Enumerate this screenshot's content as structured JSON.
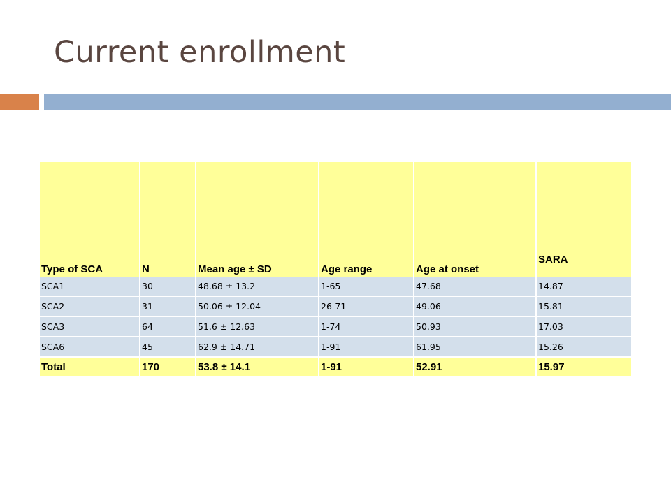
{
  "slide": {
    "title": "Current enrollment"
  },
  "table": {
    "headers": [
      "Type of SCA",
      "N",
      "Mean age ± SD",
      "Age range",
      "Age at onset",
      "SARA"
    ],
    "rows": [
      [
        "SCA1",
        "30",
        "48.68 ± 13.2",
        "1-65",
        "47.68",
        "14.87"
      ],
      [
        "SCA2",
        "31",
        "50.06 ± 12.04",
        "26-71",
        "49.06",
        "15.81"
      ],
      [
        "SCA3",
        "64",
        "51.6 ± 12.63",
        "1-74",
        "50.93",
        "17.03"
      ],
      [
        "SCA6",
        "45",
        "62.9 ± 14.71",
        "1-91",
        "61.95",
        "15.26"
      ]
    ],
    "total": [
      "Total",
      "170",
      "53.8 ± 14.1",
      "1-91",
      "52.91",
      "15.97"
    ]
  },
  "colors": {
    "title_text": "#5a4640",
    "accent_orange": "#d9824a",
    "accent_blue": "#93afd0",
    "header_fill": "#ffff99",
    "row_fill": "#d3dfeb"
  }
}
